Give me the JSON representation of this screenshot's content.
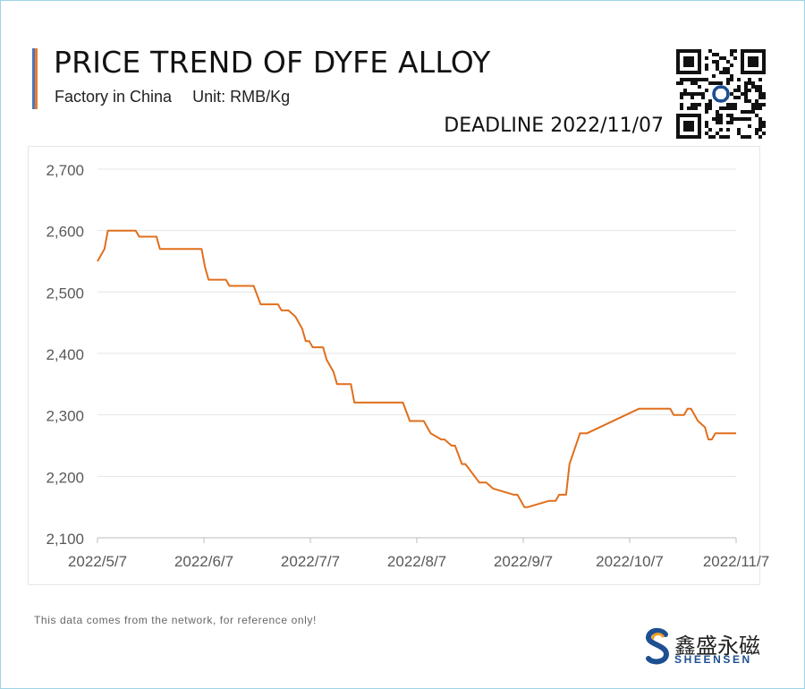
{
  "header": {
    "title": "PRICE TREND OF DYFE ALLOY",
    "factory": "Factory in China",
    "unit": "Unit: RMB/Kg",
    "deadline": "DEADLINE 2022/11/07"
  },
  "footer": {
    "note": "This data comes from the network, for reference only!",
    "brand_cn": "鑫盛永磁",
    "brand_en": "SHEENSEN"
  },
  "colors": {
    "line": "#e06f1c",
    "accent_blue": "#4a78c0",
    "accent_orange": "#ec7a2a",
    "grid": "#e5e5e5"
  },
  "chart_data": {
    "type": "line",
    "title": "PRICE TREND OF DYFE ALLOY",
    "ylabel": "Unit: RMB/Kg",
    "ylim": [
      2100,
      2700
    ],
    "yticks": [
      "2,100",
      "2,200",
      "2,300",
      "2,400",
      "2,500",
      "2,600",
      "2,700"
    ],
    "xlim": [
      "2022-05-07",
      "2022-11-07"
    ],
    "xticks": [
      "2022/5/7",
      "2022/6/7",
      "2022/7/7",
      "2022/8/7",
      "2022/9/7",
      "2022/10/7",
      "2022/11/7"
    ],
    "grid": true,
    "series": [
      {
        "x": [
          "2022-05-07",
          "2022-05-09",
          "2022-05-10",
          "2022-05-18",
          "2022-05-19",
          "2022-05-24",
          "2022-05-25",
          "2022-06-06",
          "2022-06-07",
          "2022-06-08",
          "2022-06-13",
          "2022-06-14",
          "2022-06-21",
          "2022-06-23",
          "2022-06-28",
          "2022-06-29",
          "2022-07-01",
          "2022-07-03",
          "2022-07-05",
          "2022-07-06",
          "2022-07-07",
          "2022-07-08",
          "2022-07-11",
          "2022-07-12",
          "2022-07-14",
          "2022-07-15",
          "2022-07-19",
          "2022-07-20",
          "2022-08-03",
          "2022-08-05",
          "2022-08-09",
          "2022-08-10",
          "2022-08-11",
          "2022-08-14",
          "2022-08-15",
          "2022-08-17",
          "2022-08-18",
          "2022-08-20",
          "2022-08-21",
          "2022-08-25",
          "2022-08-27",
          "2022-08-29",
          "2022-09-04",
          "2022-09-05",
          "2022-09-07",
          "2022-09-08",
          "2022-09-14",
          "2022-09-16",
          "2022-09-17",
          "2022-09-18",
          "2022-09-19",
          "2022-09-20",
          "2022-09-23",
          "2022-09-25",
          "2022-10-10",
          "2022-10-19",
          "2022-10-20",
          "2022-10-23",
          "2022-10-24",
          "2022-10-25",
          "2022-10-27",
          "2022-10-29",
          "2022-10-30",
          "2022-10-31",
          "2022-11-01",
          "2022-11-07"
        ],
        "values": [
          2550,
          2570,
          2600,
          2600,
          2590,
          2590,
          2570,
          2570,
          2540,
          2520,
          2520,
          2510,
          2510,
          2480,
          2480,
          2470,
          2470,
          2460,
          2440,
          2420,
          2420,
          2410,
          2410,
          2390,
          2370,
          2350,
          2350,
          2320,
          2320,
          2290,
          2290,
          2280,
          2270,
          2260,
          2260,
          2250,
          2250,
          2220,
          2220,
          2190,
          2190,
          2180,
          2170,
          2170,
          2150,
          2150,
          2160,
          2160,
          2170,
          2170,
          2170,
          2220,
          2270,
          2270,
          2310,
          2310,
          2300,
          2300,
          2310,
          2310,
          2290,
          2280,
          2260,
          2260,
          2270,
          2270
        ]
      }
    ]
  }
}
